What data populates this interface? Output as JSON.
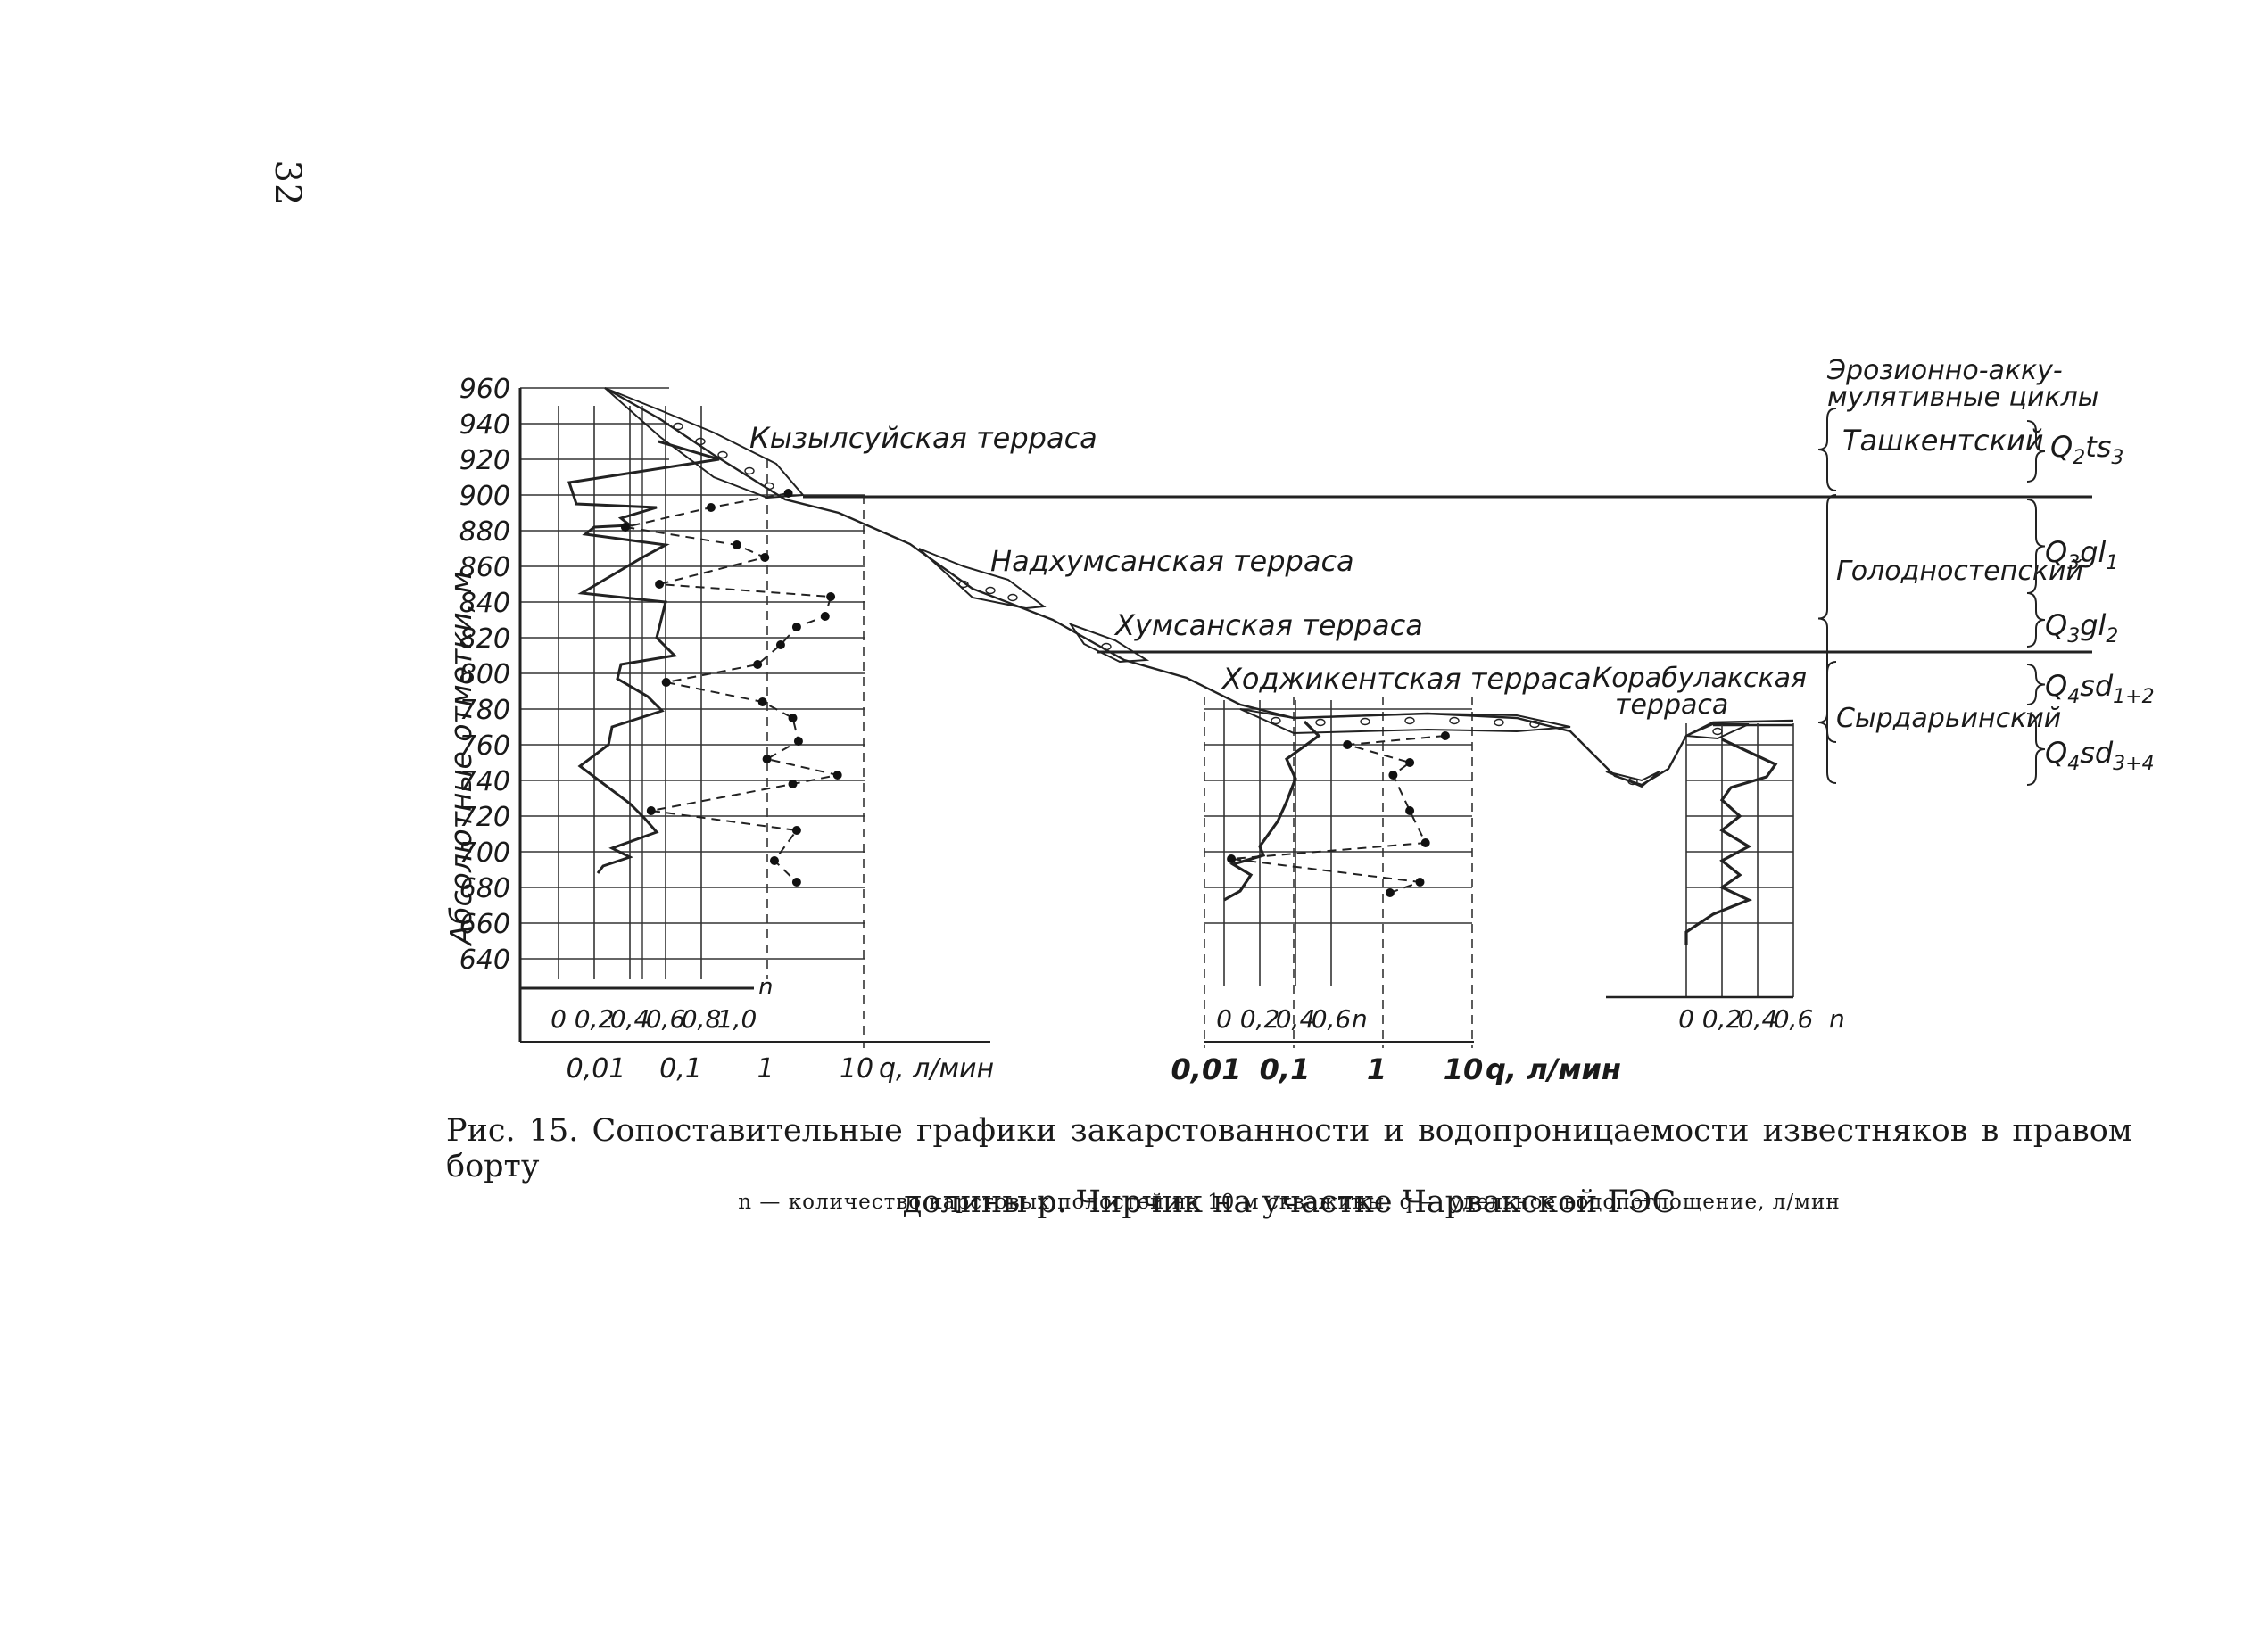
{
  "page": {
    "page_number": "32",
    "caption_line1": "Рис. 15. Сопоставительные графики закарстованности и водопроницаемости известняков в правом борту",
    "caption_line2": "долины р. Чирчик на участке Чарвакской ГЭС",
    "legend_note": "n — количество карстовых полостей на 10 м скважины, q — удельное водопоглощение, л/мин"
  },
  "labels": {
    "y_axis_title": "Абсолютные отметки, м",
    "terraces": [
      "Кызылсуйская терраса",
      "Надхумсанская терраса",
      "Хумсанская терраса",
      "Ходжикентская терраса",
      "Корабулакская",
      "терраса"
    ],
    "cycles_header": [
      "Эрозионно-акку-",
      "мулятивные циклы"
    ],
    "cycles": [
      "Ташкентский",
      "Голодностепский",
      "Сырдарьинский"
    ],
    "indices": {
      "tashkent": [
        "Q",
        "2",
        "ts",
        "3"
      ],
      "golod1": [
        "Q",
        "3",
        "gl",
        "1"
      ],
      "golod2": [
        "Q",
        "3",
        "gl",
        "2"
      ],
      "syr1": [
        "Q",
        "4",
        "sd",
        "1+2"
      ],
      "syr2": [
        "Q",
        "4",
        "sd",
        "3+4"
      ]
    }
  },
  "chart_data": [
    {
      "type": "line",
      "panel": "Кызылсуйская терраса",
      "y_ticks": [
        960,
        940,
        920,
        900,
        880,
        860,
        840,
        820,
        800,
        780,
        760,
        740,
        720,
        700,
        680,
        660,
        640
      ],
      "n_axis": {
        "label": "n",
        "ticks": [
          "0",
          "0,2",
          "0,4",
          "0,6",
          "0,8",
          "1,0"
        ],
        "range": [
          0,
          1.0
        ]
      },
      "q_axis": {
        "label": "q, л/мин",
        "ticks": [
          "0,01",
          "0,1",
          "1",
          "10"
        ],
        "scale": "log",
        "range": [
          0.01,
          10
        ]
      },
      "series": [
        {
          "values_n": [
            [
              0.56,
              930
            ],
            [
              0.9,
              920
            ],
            [
              0.06,
              907
            ],
            [
              0.1,
              895
            ],
            [
              0.55,
              893
            ],
            [
              0.35,
              887
            ],
            [
              0.4,
              883
            ],
            [
              0.2,
              882
            ],
            [
              0.15,
              878
            ],
            [
              0.6,
              872
            ],
            [
              0.47,
              865
            ],
            [
              0.3,
              855
            ],
            [
              0.13,
              845
            ],
            [
              0.6,
              840
            ],
            [
              0.55,
              820
            ],
            [
              0.65,
              810
            ],
            [
              0.35,
              805
            ],
            [
              0.33,
              797
            ],
            [
              0.5,
              787
            ],
            [
              0.58,
              779
            ],
            [
              0.3,
              770
            ],
            [
              0.28,
              760
            ],
            [
              0.12,
              748
            ],
            [
              0.24,
              739
            ],
            [
              0.4,
              727
            ],
            [
              0.48,
              719
            ],
            [
              0.55,
              711
            ],
            [
              0.3,
              702
            ],
            [
              0.4,
              697
            ],
            [
              0.25,
              692
            ],
            [
              0.22,
              688
            ]
          ],
          "values_q": [
            [
              1.6,
              901
            ],
            [
              0.2,
              893
            ],
            [
              0.02,
              882
            ],
            [
              0.4,
              872
            ],
            [
              0.85,
              865
            ],
            [
              0.05,
              850
            ],
            [
              5.0,
              843
            ],
            [
              4.3,
              832
            ],
            [
              2.0,
              826
            ],
            [
              1.3,
              816
            ],
            [
              0.7,
              805
            ],
            [
              0.06,
              795
            ],
            [
              0.8,
              784
            ],
            [
              1.8,
              775
            ],
            [
              2.1,
              762
            ],
            [
              0.9,
              752
            ],
            [
              6.0,
              743
            ],
            [
              1.8,
              738
            ],
            [
              0.04,
              723
            ],
            [
              2.0,
              712
            ],
            [
              1.1,
              695
            ],
            [
              2.0,
              683
            ]
          ]
        }
      ]
    },
    {
      "type": "line",
      "panel": "Ходжикентская терраса",
      "n_axis": {
        "label": "n",
        "ticks": [
          "0",
          "0,2",
          "0,4",
          "0,6"
        ],
        "range": [
          0,
          0.6
        ]
      },
      "q_axis": {
        "label": "q, л/мин",
        "ticks": [
          "0,01",
          "0,1",
          "1",
          "10"
        ],
        "scale": "log",
        "range": [
          0.01,
          10
        ]
      },
      "series": [
        {
          "values_n": [
            [
              0.45,
              773
            ],
            [
              0.53,
              765
            ],
            [
              0.35,
              752
            ],
            [
              0.4,
              741
            ],
            [
              0.35,
              728
            ],
            [
              0.3,
              717
            ],
            [
              0.2,
              703
            ],
            [
              0.22,
              698
            ],
            [
              0.05,
              693
            ],
            [
              0.15,
              687
            ],
            [
              0.09,
              678
            ],
            [
              0.0,
              673
            ]
          ],
          "values_q": [
            [
              5.0,
              765
            ],
            [
              0.4,
              760
            ],
            [
              2.0,
              750
            ],
            [
              1.3,
              743
            ],
            [
              2.0,
              723
            ],
            [
              3.0,
              705
            ],
            [
              0.02,
              696
            ],
            [
              2.6,
              683
            ],
            [
              1.2,
              677
            ]
          ]
        }
      ]
    },
    {
      "type": "line",
      "panel": "Корабулакская терраса",
      "n_axis": {
        "label": "n",
        "ticks": [
          "0",
          "0,2",
          "0,4",
          "0,6"
        ],
        "range": [
          0,
          0.6
        ]
      },
      "series": [
        {
          "values_n": [
            [
              0.2,
              763
            ],
            [
              0.5,
              749
            ],
            [
              0.45,
              742
            ],
            [
              0.25,
              736
            ],
            [
              0.2,
              729
            ],
            [
              0.3,
              720
            ],
            [
              0.2,
              712
            ],
            [
              0.35,
              703
            ],
            [
              0.2,
              695
            ],
            [
              0.3,
              687
            ],
            [
              0.2,
              680
            ],
            [
              0.35,
              673
            ],
            [
              0.15,
              665
            ],
            [
              0.0,
              655
            ],
            [
              0.0,
              648
            ]
          ]
        }
      ]
    }
  ]
}
